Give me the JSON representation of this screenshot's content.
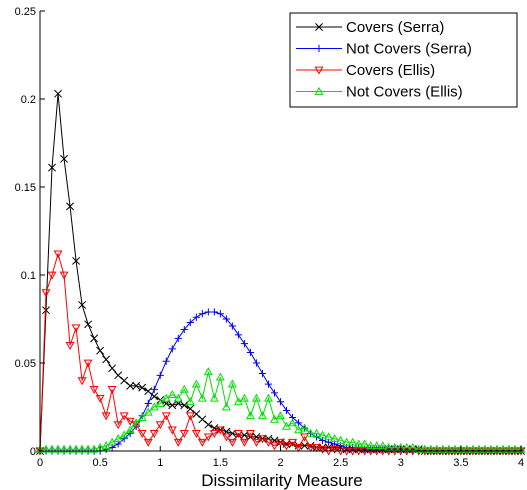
{
  "chart_data": {
    "type": "line",
    "title": "",
    "xlabel": "Dissimilarity Measure",
    "ylabel": "",
    "xlim": [
      0,
      4
    ],
    "ylim": [
      0,
      0.25
    ],
    "xticks": [
      "0",
      "0.5",
      "1",
      "1.5",
      "2",
      "2.5",
      "3",
      "3.5",
      "4"
    ],
    "yticks": [
      "0",
      "0.05",
      "0.1",
      "0.15",
      "0.2",
      "0.25"
    ],
    "grid": false,
    "legend_position": "top-right",
    "series": [
      {
        "name": "Covers (Serra)",
        "color": "#000000",
        "marker": "x",
        "x": [
          0,
          0.05,
          0.1,
          0.15,
          0.2,
          0.25,
          0.3,
          0.35,
          0.4,
          0.45,
          0.5,
          0.55,
          0.6,
          0.65,
          0.7,
          0.75,
          0.8,
          0.85,
          0.9,
          0.95,
          1.0,
          1.05,
          1.1,
          1.15,
          1.2,
          1.25,
          1.3,
          1.35,
          1.4,
          1.45,
          1.5,
          1.55,
          1.6,
          1.65,
          1.7,
          1.75,
          1.8,
          1.85,
          1.9,
          1.95,
          2.0,
          2.05,
          2.1,
          2.15,
          2.2,
          2.25,
          2.3,
          2.35,
          2.4,
          2.45,
          2.5,
          2.55,
          2.6,
          2.65,
          2.7,
          2.75,
          2.8,
          2.85,
          2.9,
          2.95,
          3.0,
          3.05,
          3.1,
          3.15,
          3.2,
          3.25,
          3.3,
          3.35,
          3.4,
          3.45,
          3.5,
          3.55,
          3.6,
          3.65,
          3.7,
          3.75,
          3.8,
          3.85,
          3.9,
          3.95,
          4.0
        ],
        "y": [
          0,
          0.08,
          0.161,
          0.203,
          0.166,
          0.139,
          0.108,
          0.083,
          0.072,
          0.064,
          0.057,
          0.052,
          0.047,
          0.043,
          0.04,
          0.037,
          0.037,
          0.036,
          0.034,
          0.031,
          0.029,
          0.027,
          0.026,
          0.027,
          0.026,
          0.024,
          0.021,
          0.018,
          0.015,
          0.013,
          0.012,
          0.011,
          0.01,
          0.009,
          0.009,
          0.008,
          0.008,
          0.007,
          0.007,
          0.006,
          0.005,
          0.004,
          0.004,
          0.003,
          0.003,
          0.003,
          0.002,
          0.002,
          0.002,
          0.002,
          0.002,
          0.001,
          0.001,
          0.001,
          0.001,
          0.001,
          0.001,
          0.001,
          0.001,
          0.001,
          0.001,
          0.001,
          0.001,
          0.001,
          0,
          0,
          0,
          0,
          0,
          0,
          0,
          0,
          0,
          0,
          0,
          0,
          0,
          0,
          0,
          0,
          0
        ]
      },
      {
        "name": "Not Covers (Serra)",
        "color": "#0000ff",
        "marker": "+",
        "x": [
          0,
          0.05,
          0.1,
          0.15,
          0.2,
          0.25,
          0.3,
          0.35,
          0.4,
          0.45,
          0.5,
          0.55,
          0.6,
          0.65,
          0.7,
          0.75,
          0.8,
          0.85,
          0.9,
          0.95,
          1.0,
          1.05,
          1.1,
          1.15,
          1.2,
          1.25,
          1.3,
          1.35,
          1.4,
          1.45,
          1.5,
          1.55,
          1.6,
          1.65,
          1.7,
          1.75,
          1.8,
          1.85,
          1.9,
          1.95,
          2.0,
          2.05,
          2.1,
          2.15,
          2.2,
          2.25,
          2.3,
          2.35,
          2.4,
          2.45,
          2.5,
          2.55,
          2.6,
          2.65,
          2.7,
          2.75,
          2.8,
          2.85,
          2.9,
          2.95,
          3.0,
          3.05,
          3.1,
          3.15,
          3.2,
          3.25,
          3.3,
          3.35,
          3.4,
          3.45,
          3.5,
          3.55,
          3.6,
          3.65,
          3.7,
          3.75,
          3.8,
          3.85,
          3.9,
          3.95,
          4.0
        ],
        "y": [
          0,
          0,
          0,
          0,
          0,
          0,
          0,
          0,
          0,
          0,
          0,
          0.001,
          0.002,
          0.004,
          0.007,
          0.01,
          0.014,
          0.02,
          0.027,
          0.035,
          0.043,
          0.051,
          0.058,
          0.064,
          0.069,
          0.073,
          0.076,
          0.078,
          0.079,
          0.079,
          0.078,
          0.075,
          0.071,
          0.066,
          0.061,
          0.056,
          0.05,
          0.044,
          0.038,
          0.033,
          0.028,
          0.023,
          0.019,
          0.016,
          0.013,
          0.01,
          0.008,
          0.006,
          0.005,
          0.004,
          0.003,
          0.002,
          0.002,
          0.002,
          0.001,
          0.001,
          0.001,
          0.001,
          0.001,
          0.001,
          0.001,
          0,
          0,
          0,
          0,
          0,
          0,
          0,
          0,
          0,
          0,
          0,
          0,
          0,
          0,
          0,
          0,
          0,
          0,
          0,
          0
        ]
      },
      {
        "name": "Covers (Ellis)",
        "color": "#ff0000",
        "marker": "triangle-down",
        "x": [
          0,
          0.05,
          0.1,
          0.15,
          0.2,
          0.25,
          0.3,
          0.35,
          0.4,
          0.45,
          0.5,
          0.55,
          0.6,
          0.65,
          0.7,
          0.75,
          0.8,
          0.85,
          0.9,
          0.95,
          1.0,
          1.05,
          1.1,
          1.15,
          1.2,
          1.25,
          1.3,
          1.35,
          1.4,
          1.45,
          1.5,
          1.55,
          1.6,
          1.65,
          1.7,
          1.75,
          1.8,
          1.85,
          1.9,
          1.95,
          2.0,
          2.05,
          2.1,
          2.15,
          2.2,
          2.25,
          2.3,
          2.35,
          2.4,
          2.45,
          2.5,
          2.55,
          2.6,
          2.65,
          2.7,
          2.75,
          2.8,
          2.85,
          2.9,
          2.95,
          3.0,
          3.05,
          3.1,
          3.15,
          3.2,
          3.25,
          3.3,
          3.35,
          3.4,
          3.45,
          3.5,
          3.55,
          3.6,
          3.65,
          3.7,
          3.75,
          3.8,
          3.85,
          3.9,
          3.95,
          4.0
        ],
        "y": [
          0,
          0.09,
          0.1,
          0.112,
          0.1,
          0.06,
          0.07,
          0.04,
          0.05,
          0.035,
          0.03,
          0.02,
          0.035,
          0.015,
          0.02,
          0.017,
          0.015,
          0.01,
          0.005,
          0.01,
          0.015,
          0.02,
          0.012,
          0.005,
          0.01,
          0.02,
          0.01,
          0.005,
          0.008,
          0.01,
          0.012,
          0.008,
          0.005,
          0.01,
          0.005,
          0.01,
          0.005,
          0.007,
          0.005,
          0.003,
          0.005,
          0.003,
          0.005,
          0.002,
          0.008,
          0.002,
          0.002,
          0.001,
          0,
          0.001,
          0,
          0,
          0,
          0,
          0,
          0,
          0,
          0,
          0,
          0,
          0,
          0,
          0,
          0,
          0,
          0,
          0,
          0,
          0,
          0,
          0,
          0,
          0,
          0,
          0,
          0,
          0,
          0,
          0,
          0,
          0
        ]
      },
      {
        "name": "Not Covers (Ellis)",
        "color": "#00e000",
        "marker": "triangle-up",
        "x": [
          0,
          0.05,
          0.1,
          0.15,
          0.2,
          0.25,
          0.3,
          0.35,
          0.4,
          0.45,
          0.5,
          0.55,
          0.6,
          0.65,
          0.7,
          0.75,
          0.8,
          0.85,
          0.9,
          0.95,
          1.0,
          1.05,
          1.1,
          1.15,
          1.2,
          1.25,
          1.3,
          1.35,
          1.4,
          1.45,
          1.5,
          1.55,
          1.6,
          1.65,
          1.7,
          1.75,
          1.8,
          1.85,
          1.9,
          1.95,
          2.0,
          2.05,
          2.1,
          2.15,
          2.2,
          2.25,
          2.3,
          2.35,
          2.4,
          2.45,
          2.5,
          2.55,
          2.6,
          2.65,
          2.7,
          2.75,
          2.8,
          2.85,
          2.9,
          2.95,
          3.0,
          3.05,
          3.1,
          3.15,
          3.2,
          3.25,
          3.3,
          3.35,
          3.4,
          3.45,
          3.5,
          3.55,
          3.6,
          3.65,
          3.7,
          3.75,
          3.8,
          3.85,
          3.9,
          3.95,
          4.0
        ],
        "y": [
          0.001,
          0.001,
          0.001,
          0.001,
          0.001,
          0.001,
          0.001,
          0.001,
          0.001,
          0.001,
          0.002,
          0.003,
          0.005,
          0.007,
          0.009,
          0.012,
          0.016,
          0.019,
          0.022,
          0.025,
          0.027,
          0.03,
          0.032,
          0.03,
          0.035,
          0.028,
          0.038,
          0.03,
          0.045,
          0.03,
          0.042,
          0.025,
          0.038,
          0.028,
          0.03,
          0.02,
          0.03,
          0.02,
          0.03,
          0.018,
          0.02,
          0.014,
          0.016,
          0.012,
          0.013,
          0.01,
          0.01,
          0.009,
          0.008,
          0.007,
          0.006,
          0.005,
          0.005,
          0.004,
          0.004,
          0.003,
          0.003,
          0.003,
          0.002,
          0.002,
          0.002,
          0.002,
          0.002,
          0.001,
          0.001,
          0.001,
          0.001,
          0.001,
          0.001,
          0.001,
          0.001,
          0.001,
          0.001,
          0.001,
          0.001,
          0.001,
          0.001,
          0.001,
          0.001,
          0.001,
          0.001
        ]
      }
    ]
  }
}
